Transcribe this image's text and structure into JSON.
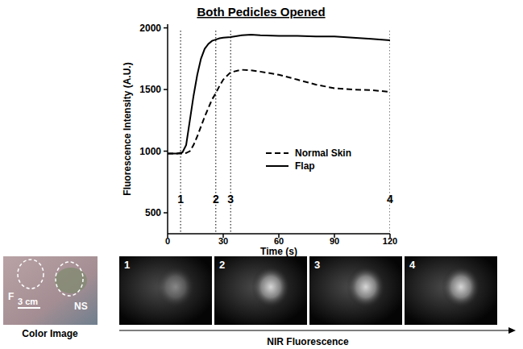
{
  "chart_data": {
    "type": "line",
    "title": "Both Pedicles Opened",
    "x_label": "Time (s)",
    "y_label": "Fluorescence Intensity (A.U.)",
    "x": [
      0,
      5,
      8,
      10,
      12,
      14,
      16,
      18,
      20,
      22,
      24,
      26,
      28,
      30,
      34,
      40,
      45,
      50,
      60,
      70,
      80,
      90,
      100,
      110,
      120
    ],
    "series": [
      {
        "name": "Normal Skin",
        "color": "#000000",
        "line_style": "dashed",
        "values": [
          980,
          980,
          980,
          985,
          1000,
          1050,
          1120,
          1200,
          1280,
          1350,
          1420,
          1470,
          1530,
          1580,
          1640,
          1660,
          1655,
          1645,
          1620,
          1580,
          1540,
          1510,
          1500,
          1495,
          1480
        ]
      },
      {
        "name": "Flap",
        "color": "#000000",
        "line_style": "solid",
        "values": [
          980,
          980,
          990,
          1050,
          1250,
          1450,
          1620,
          1750,
          1830,
          1870,
          1895,
          1905,
          1915,
          1920,
          1925,
          1940,
          1945,
          1940,
          1935,
          1935,
          1930,
          1930,
          1920,
          1910,
          1900
        ]
      }
    ],
    "annotations": [
      {
        "x": 7,
        "text": "1"
      },
      {
        "x": 26,
        "text": "2"
      },
      {
        "x": 34,
        "text": "3"
      },
      {
        "x": 120,
        "text": "4"
      }
    ],
    "xlim": [
      0,
      120
    ],
    "xticks": [
      0,
      30,
      60,
      90,
      120
    ],
    "ylim": [
      330,
      2030
    ],
    "yticks": [
      500,
      1000,
      1500,
      2000
    ],
    "grid": false,
    "legend": "lower right"
  },
  "images": {
    "color_image": {
      "label": "Color Image",
      "annotations": [
        "F",
        "NS",
        "3 cm"
      ]
    },
    "nir": {
      "label": "NIR Fluorescence",
      "frames": [
        "1",
        "2",
        "3",
        "4"
      ]
    }
  }
}
